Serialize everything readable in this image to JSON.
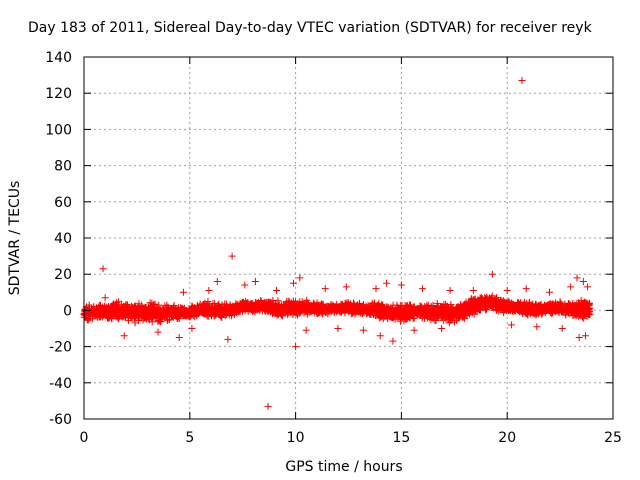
{
  "chart_data": {
    "type": "scatter",
    "title": "Day 183 of 2011, Sidereal Day-to-day VTEC variation (SDTVAR) for receiver reyk",
    "xlabel": "GPS time / hours",
    "ylabel": "SDTVAR / TECUs",
    "xlim": [
      0,
      25
    ],
    "ylim": [
      -60,
      140
    ],
    "xticks": [
      0,
      5,
      10,
      15,
      20,
      25
    ],
    "yticks": [
      -60,
      -40,
      -20,
      0,
      20,
      40,
      60,
      80,
      100,
      120,
      140
    ],
    "grid": true,
    "marker": "+",
    "color": "#ff0000",
    "band": [
      [
        0.0,
        -6,
        3
      ],
      [
        0.5,
        -6,
        4
      ],
      [
        1.0,
        -6,
        5
      ],
      [
        1.5,
        -6,
        6
      ],
      [
        2.0,
        -7,
        6
      ],
      [
        2.5,
        -8,
        6
      ],
      [
        3.0,
        -8,
        6
      ],
      [
        3.5,
        -8,
        5
      ],
      [
        4.0,
        -7,
        4
      ],
      [
        4.5,
        -6,
        3
      ],
      [
        5.0,
        -6,
        4
      ],
      [
        5.5,
        -4,
        6
      ],
      [
        6.0,
        -5,
        6
      ],
      [
        6.5,
        -6,
        5
      ],
      [
        7.0,
        -4,
        5
      ],
      [
        7.5,
        -2,
        6
      ],
      [
        8.0,
        -2,
        6
      ],
      [
        8.5,
        -2,
        7
      ],
      [
        9.0,
        -4,
        6
      ],
      [
        9.5,
        -4,
        6
      ],
      [
        10.0,
        -4,
        7
      ],
      [
        10.5,
        -3,
        6
      ],
      [
        11.0,
        -3,
        5
      ],
      [
        11.5,
        -3,
        4
      ],
      [
        12.0,
        -2,
        5
      ],
      [
        12.5,
        -2,
        5
      ],
      [
        13.0,
        -3,
        5
      ],
      [
        13.5,
        -4,
        5
      ],
      [
        14.0,
        -6,
        5
      ],
      [
        14.5,
        -6,
        4
      ],
      [
        15.0,
        -7,
        5
      ],
      [
        15.5,
        -7,
        5
      ],
      [
        16.0,
        -6,
        4
      ],
      [
        16.5,
        -6,
        4
      ],
      [
        17.0,
        -7,
        5
      ],
      [
        17.5,
        -8,
        5
      ],
      [
        18.0,
        -6,
        7
      ],
      [
        18.5,
        -3,
        9
      ],
      [
        19.0,
        -1,
        10
      ],
      [
        19.5,
        -1,
        9
      ],
      [
        20.0,
        -2,
        6
      ],
      [
        20.5,
        -3,
        6
      ],
      [
        21.0,
        -4,
        6
      ],
      [
        21.5,
        -4,
        5
      ],
      [
        22.0,
        -3,
        5
      ],
      [
        22.5,
        -3,
        5
      ],
      [
        23.0,
        -4,
        6
      ],
      [
        23.5,
        -6,
        7
      ],
      [
        23.9,
        -6,
        7
      ]
    ],
    "outliers": [
      [
        0.9,
        23
      ],
      [
        1.0,
        7
      ],
      [
        1.9,
        -14
      ],
      [
        3.5,
        -12
      ],
      [
        4.5,
        -15
      ],
      [
        4.7,
        10
      ],
      [
        5.1,
        -10
      ],
      [
        5.9,
        11
      ],
      [
        6.3,
        16
      ],
      [
        6.8,
        -16
      ],
      [
        7.0,
        30
      ],
      [
        7.6,
        14
      ],
      [
        8.1,
        16
      ],
      [
        8.7,
        -53
      ],
      [
        9.1,
        11
      ],
      [
        9.9,
        15
      ],
      [
        10.0,
        -20
      ],
      [
        10.2,
        18
      ],
      [
        10.5,
        -11
      ],
      [
        11.4,
        12
      ],
      [
        12.0,
        -10
      ],
      [
        12.4,
        13
      ],
      [
        13.2,
        -11
      ],
      [
        13.8,
        12
      ],
      [
        14.0,
        -14
      ],
      [
        14.3,
        15
      ],
      [
        14.6,
        -17
      ],
      [
        15.0,
        14
      ],
      [
        15.6,
        -11
      ],
      [
        16.0,
        12
      ],
      [
        16.9,
        -10
      ],
      [
        17.3,
        11
      ],
      [
        18.4,
        11
      ],
      [
        19.3,
        20
      ],
      [
        20.0,
        11
      ],
      [
        20.2,
        -8
      ],
      [
        20.7,
        127
      ],
      [
        20.9,
        12
      ],
      [
        21.4,
        -9
      ],
      [
        22.0,
        10
      ],
      [
        22.6,
        -10
      ],
      [
        23.0,
        13
      ],
      [
        23.3,
        18
      ],
      [
        23.4,
        -15
      ],
      [
        23.6,
        16
      ],
      [
        23.7,
        -14
      ],
      [
        23.8,
        13
      ]
    ]
  }
}
